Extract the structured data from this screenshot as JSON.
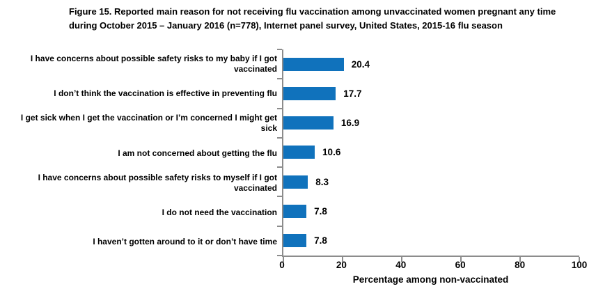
{
  "title": "Figure 15. Reported main reason for not receiving flu vaccination among unvaccinated women pregnant any time during October 2015 – January 2016 (n=778), Internet panel survey, United States, 2015-16 flu season",
  "chart_data": {
    "type": "bar",
    "orientation": "horizontal",
    "title": "Figure 15. Reported main reason for not receiving flu vaccination among unvaccinated women pregnant any time during October 2015 – January 2016 (n=778), Internet panel survey, United States, 2015-16 flu season",
    "categories": [
      "I have concerns about possible safety risks to my baby if I got vaccinated",
      "I don’t think the vaccination is effective in preventing flu",
      "I get sick when I get the vaccination or I’m concerned I might get sick",
      "I am not concerned about getting the flu",
      "I have concerns about possible safety risks to myself if I got vaccinated",
      "I do not need the vaccination",
      "I haven’t gotten around to it or don’t have time"
    ],
    "values": [
      20.4,
      17.7,
      16.9,
      10.6,
      8.3,
      7.8,
      7.8
    ],
    "value_labels": [
      "20.4",
      "17.7",
      "16.9",
      "10.6",
      "8.3",
      "7.8",
      "7.8"
    ],
    "xlabel": "Percentage among non-vaccinated",
    "ylabel": "",
    "xlim": [
      0,
      100
    ],
    "xticks": [
      0,
      20,
      40,
      60,
      80,
      100
    ],
    "grid": false,
    "legend": false,
    "bar_color": "#1072bc",
    "axis_color": "#8c8c8c",
    "text_color": "#000000"
  }
}
